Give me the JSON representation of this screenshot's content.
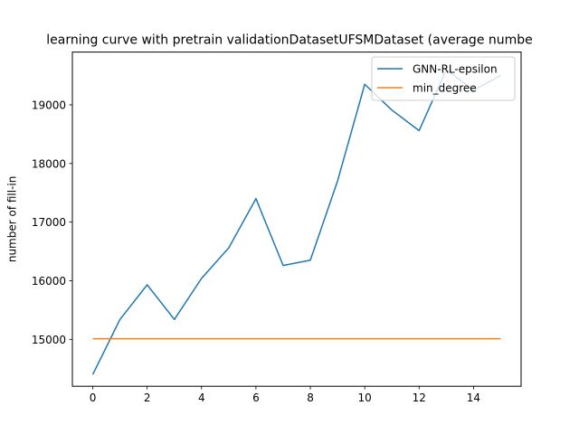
{
  "chart_data": {
    "type": "line",
    "title": "learning curve with pretrain validationDatasetUFSMDataset (average numbe",
    "xlabel": "",
    "ylabel": "number of fill-in",
    "xlim": [
      -0.75,
      15.75
    ],
    "ylim": [
      14200,
      19900
    ],
    "xticks": [
      0,
      2,
      4,
      6,
      8,
      10,
      12,
      14
    ],
    "yticks": [
      15000,
      16000,
      17000,
      18000,
      19000
    ],
    "legend_position": "top-right",
    "grid": false,
    "series": [
      {
        "name": "GNN-RL-epsilon",
        "color": "#1f77b4",
        "x": [
          0,
          1,
          2,
          3,
          4,
          5,
          6,
          7,
          8,
          9,
          10,
          11,
          12,
          13,
          14,
          15
        ],
        "values": [
          14400,
          15340,
          15930,
          15340,
          16040,
          16560,
          17400,
          16260,
          16350,
          17700,
          19350,
          18910,
          18560,
          19600,
          19250,
          19500
        ]
      },
      {
        "name": "min_degree",
        "color": "#ff7f0e",
        "x": [
          0,
          1,
          2,
          3,
          4,
          5,
          6,
          7,
          8,
          9,
          10,
          11,
          12,
          13,
          14,
          15
        ],
        "values": [
          15010,
          15010,
          15010,
          15010,
          15010,
          15010,
          15010,
          15010,
          15010,
          15010,
          15010,
          15010,
          15010,
          15010,
          15010,
          15010
        ]
      }
    ]
  }
}
